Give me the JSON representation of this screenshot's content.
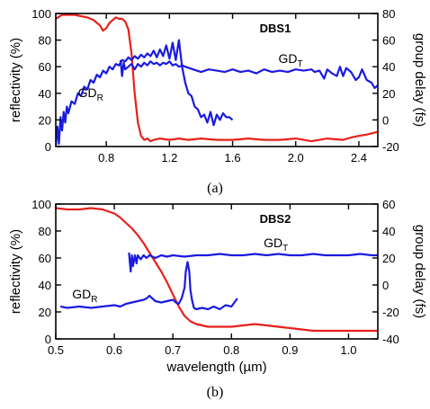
{
  "colors": {
    "reflectivity": "#e8201a",
    "group_delay": "#1a1ae0",
    "axes": "#000000"
  },
  "chart_data": [
    {
      "type": "line",
      "title": "DBS1",
      "caption": "(a)",
      "xlabel": "",
      "ylabel_left": "reflectivity (%)",
      "ylabel_right": "group delay (fs)",
      "xlim": [
        0.48,
        2.52
      ],
      "ylim_left": [
        0,
        100
      ],
      "ylim_right": [
        -20,
        80
      ],
      "x_ticks": [
        0.8,
        1.2,
        1.6,
        2.0,
        2.4
      ],
      "x_tick_labels": [
        "0.8",
        "1.2",
        "1.6",
        "2.0",
        "2.4"
      ],
      "y_ticks_left": [
        0,
        20,
        40,
        60,
        80,
        100
      ],
      "y_tick_labels_left": [
        "0",
        "20",
        "40",
        "60",
        "80",
        "100"
      ],
      "y_ticks_right": [
        -20,
        0,
        20,
        40,
        60,
        80
      ],
      "y_tick_labels_right": [
        "-20",
        "0",
        "20",
        "40",
        "60",
        "80"
      ],
      "annotations": [
        {
          "base": "GD",
          "sub": "R",
          "x": 0.62,
          "y_right": 17
        },
        {
          "base": "GD",
          "sub": "T",
          "x": 1.89,
          "y_right": 43
        }
      ],
      "series": [
        {
          "key": "reflectivity",
          "axis": "left",
          "color": "reflectivity",
          "x": [
            0.48,
            0.52,
            0.56,
            0.6,
            0.64,
            0.68,
            0.72,
            0.76,
            0.78,
            0.8,
            0.82,
            0.84,
            0.86,
            0.88,
            0.9,
            0.92,
            0.94,
            0.96,
            0.98,
            1.0,
            1.02,
            1.04,
            1.06,
            1.08,
            1.1,
            1.14,
            1.2,
            1.26,
            1.32,
            1.4,
            1.5,
            1.6,
            1.7,
            1.8,
            1.9,
            2.0,
            2.1,
            2.2,
            2.3,
            2.36,
            2.4,
            2.45,
            2.52
          ],
          "y": [
            96,
            99,
            99,
            99,
            98,
            97,
            95,
            91,
            87,
            89,
            93,
            95,
            97,
            96,
            96,
            94,
            88,
            70,
            40,
            18,
            8,
            5,
            6,
            4,
            5,
            6,
            5,
            6,
            5,
            6,
            5,
            5,
            6,
            5,
            5,
            6,
            4,
            6,
            5,
            7,
            8,
            9,
            11
          ]
        },
        {
          "key": "gd_r",
          "axis": "right",
          "color": "group_delay",
          "x": [
            0.48,
            0.49,
            0.5,
            0.51,
            0.52,
            0.53,
            0.54,
            0.55,
            0.56,
            0.58,
            0.6,
            0.62,
            0.64,
            0.66,
            0.68,
            0.7,
            0.72,
            0.74,
            0.76,
            0.78,
            0.8,
            0.82,
            0.84,
            0.86,
            0.88,
            0.9,
            0.92,
            0.94,
            0.96,
            0.98,
            1.0,
            1.02,
            1.04,
            1.06,
            1.08,
            1.1,
            1.12,
            1.14,
            1.16,
            1.18,
            1.2,
            1.22,
            1.24,
            1.26,
            1.28,
            1.3,
            1.32,
            1.34,
            1.36,
            1.38,
            1.4,
            1.42,
            1.44,
            1.46,
            1.48,
            1.5,
            1.52,
            1.54,
            1.56,
            1.58,
            1.6
          ],
          "y": [
            -20,
            -5,
            -18,
            2,
            -8,
            6,
            -2,
            10,
            5,
            14,
            12,
            20,
            18,
            25,
            23,
            30,
            28,
            34,
            32,
            37,
            35,
            40,
            38,
            42,
            41,
            45,
            44,
            47,
            45,
            48,
            46,
            49,
            47,
            50,
            48,
            52,
            47,
            53,
            48,
            56,
            46,
            58,
            45,
            60,
            40,
            28,
            20,
            18,
            10,
            8,
            2,
            4,
            -2,
            6,
            -4,
            4,
            0,
            5,
            2,
            2,
            0
          ]
        },
        {
          "key": "gd_t",
          "axis": "right",
          "color": "group_delay",
          "x": [
            0.89,
            0.9,
            0.91,
            0.92,
            0.94,
            0.96,
            0.98,
            1.0,
            1.02,
            1.04,
            1.06,
            1.08,
            1.1,
            1.12,
            1.14,
            1.16,
            1.18,
            1.2,
            1.22,
            1.24,
            1.26,
            1.28,
            1.3,
            1.35,
            1.4,
            1.45,
            1.5,
            1.55,
            1.6,
            1.65,
            1.7,
            1.75,
            1.8,
            1.85,
            1.9,
            1.95,
            2.0,
            2.05,
            2.1,
            2.12,
            2.15,
            2.18,
            2.2,
            2.23,
            2.26,
            2.28,
            2.3,
            2.32,
            2.35,
            2.38,
            2.4,
            2.42,
            2.45,
            2.48,
            2.5,
            2.52
          ],
          "y": [
            45,
            33,
            43,
            38,
            40,
            42,
            38,
            42,
            40,
            43,
            41,
            44,
            42,
            43,
            41,
            43,
            42,
            44,
            41,
            42,
            40,
            41,
            40,
            38,
            36,
            38,
            37,
            36,
            38,
            36,
            37,
            35,
            38,
            36,
            37,
            36,
            38,
            37,
            38,
            36,
            37,
            31,
            38,
            35,
            33,
            40,
            33,
            39,
            36,
            30,
            32,
            38,
            30,
            28,
            24,
            26
          ]
        }
      ]
    },
    {
      "type": "line",
      "title": "DBS2",
      "caption": "(b)",
      "xlabel": "wavelength (µm)",
      "ylabel_left": "reflectivity (%)",
      "ylabel_right": "group delay (fs)",
      "xlim": [
        0.5,
        1.05
      ],
      "ylim_left": [
        0,
        100
      ],
      "ylim_right": [
        -40,
        60
      ],
      "x_ticks": [
        0.5,
        0.6,
        0.7,
        0.8,
        0.9,
        1.0
      ],
      "x_tick_labels": [
        "0.5",
        "0.6",
        "0.7",
        "0.8",
        "0.9",
        "1.0"
      ],
      "y_ticks_left": [
        0,
        20,
        40,
        60,
        80,
        100
      ],
      "y_tick_labels_left": [
        "0",
        "20",
        "40",
        "60",
        "80",
        "100"
      ],
      "y_ticks_right": [
        -40,
        -20,
        0,
        20,
        40,
        60
      ],
      "y_tick_labels_right": [
        "-40",
        "-20",
        "0",
        "20",
        "40",
        "60"
      ],
      "annotations": [
        {
          "base": "GD",
          "sub": "R",
          "x": 0.528,
          "y_right": -10
        },
        {
          "base": "GD",
          "sub": "T",
          "x": 0.855,
          "y_right": 28
        }
      ],
      "series": [
        {
          "key": "reflectivity",
          "axis": "left",
          "color": "reflectivity",
          "x": [
            0.5,
            0.52,
            0.54,
            0.56,
            0.58,
            0.6,
            0.61,
            0.62,
            0.63,
            0.64,
            0.65,
            0.66,
            0.67,
            0.68,
            0.69,
            0.7,
            0.71,
            0.72,
            0.73,
            0.74,
            0.75,
            0.76,
            0.78,
            0.8,
            0.82,
            0.84,
            0.86,
            0.88,
            0.9,
            0.92,
            0.94,
            0.96,
            0.98,
            1.0,
            1.02,
            1.04,
            1.05
          ],
          "y": [
            97,
            96,
            96,
            97,
            96,
            93,
            90,
            86,
            82,
            77,
            71,
            64,
            57,
            50,
            42,
            33,
            24,
            17,
            13,
            11,
            10,
            9,
            9,
            9,
            10,
            11,
            10,
            9,
            8,
            7,
            6,
            6,
            6,
            6,
            6,
            6,
            6
          ]
        },
        {
          "key": "gd_r",
          "axis": "right",
          "color": "group_delay",
          "x": [
            0.508,
            0.52,
            0.54,
            0.56,
            0.58,
            0.6,
            0.61,
            0.62,
            0.63,
            0.64,
            0.65,
            0.655,
            0.66,
            0.665,
            0.67,
            0.68,
            0.69,
            0.7,
            0.705,
            0.71,
            0.715,
            0.72,
            0.722,
            0.725,
            0.728,
            0.73,
            0.733,
            0.736,
            0.74,
            0.75,
            0.76,
            0.77,
            0.78,
            0.79,
            0.8,
            0.81
          ],
          "y": [
            -16,
            -17,
            -16,
            -17,
            -16,
            -15,
            -16,
            -14,
            -13,
            -12,
            -11,
            -10,
            -8,
            -10,
            -12,
            -13,
            -12,
            -11,
            -13,
            -14,
            -10,
            -2,
            10,
            17,
            10,
            -4,
            -12,
            -17,
            -18,
            -17,
            -18,
            -16,
            -18,
            -15,
            -16,
            -10
          ]
        },
        {
          "key": "gd_t",
          "axis": "right",
          "color": "group_delay",
          "x": [
            0.625,
            0.628,
            0.63,
            0.632,
            0.635,
            0.638,
            0.64,
            0.645,
            0.65,
            0.655,
            0.66,
            0.67,
            0.68,
            0.69,
            0.7,
            0.72,
            0.74,
            0.76,
            0.78,
            0.8,
            0.82,
            0.84,
            0.86,
            0.88,
            0.9,
            0.92,
            0.94,
            0.96,
            0.98,
            1.0,
            1.02,
            1.04,
            1.05
          ],
          "y": [
            24,
            10,
            22,
            14,
            22,
            16,
            22,
            19,
            22,
            20,
            22,
            20,
            22,
            21,
            22,
            21,
            22,
            22,
            23,
            22,
            22,
            23,
            22,
            23,
            22,
            22,
            23,
            22,
            22,
            22,
            23,
            22,
            22
          ]
        }
      ]
    }
  ]
}
